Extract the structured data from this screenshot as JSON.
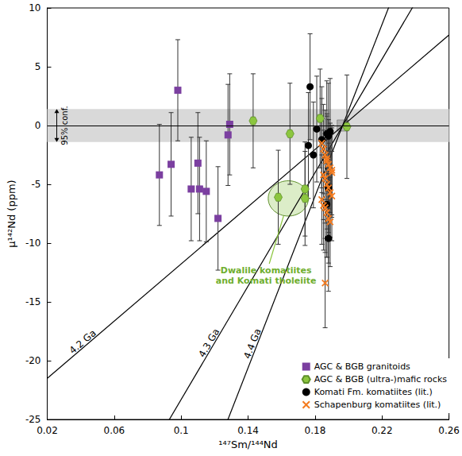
{
  "chart_data": {
    "type": "scatter",
    "xlabel": "¹⁴⁷Sm/¹⁴⁴Nd",
    "ylabel": "μ¹⁴²Nd (ppm)",
    "xlim": [
      0.02,
      0.26
    ],
    "xticks": [
      0.02,
      0.06,
      0.1,
      0.14,
      0.18,
      0.22,
      0.26
    ],
    "ylim": [
      -25,
      10
    ],
    "yticks": [
      -25,
      -20,
      -15,
      -10,
      -5,
      0,
      5,
      10
    ],
    "grid": false,
    "legend": "lower right",
    "series": [
      {
        "name": "AGC & BGB granitoids",
        "color": "#7b3fa0",
        "marker": "square",
        "x": [
          0.087,
          0.094,
          0.098,
          0.106,
          0.11,
          0.111,
          0.115,
          0.122,
          0.128,
          0.129
        ],
        "values": [
          -4.2,
          -3.3,
          3,
          -5.4,
          -3.2,
          -5.4,
          -5.6,
          -7.9,
          -0.8,
          0.1
        ],
        "errors": [
          4.3,
          4.4,
          4.3,
          4.4,
          4.3,
          4.4,
          4.3,
          4.4,
          4.3,
          4.3
        ]
      },
      {
        "name": "AGC & BGB (ultra-)mafic rocks",
        "color": "#8cc63f",
        "marker": "hexagon",
        "x": [
          0.143,
          0.158,
          0.165,
          0.174,
          0.174,
          0.183,
          0.199
        ],
        "values": [
          0.4,
          -6.1,
          -0.7,
          -5.4,
          -6.2,
          0.6,
          -0.1
        ],
        "errors": [
          4.0,
          4.0,
          4.3,
          4.0,
          4.0,
          4.2,
          4.4
        ]
      },
      {
        "name": "Komati Fm. komatiites (lit.)",
        "color": "#000000",
        "marker": "circle",
        "x": [
          0.176,
          0.177,
          0.179,
          0.181,
          0.184,
          0.187,
          0.187,
          0.188,
          0.188,
          0.189,
          0.188
        ],
        "values": [
          -1.7,
          3.3,
          -2.5,
          -0.3,
          -1.2,
          -0.7,
          -6.7,
          -0.9,
          -5.3,
          -0.5,
          -9.6
        ],
        "errors": [
          4.5,
          4.5,
          4.5,
          4.5,
          4.5,
          4.5,
          4.5,
          4.5,
          4.5,
          4.5,
          4.5
        ]
      },
      {
        "name": "Schapenburg komatiites (lit.)",
        "color": "#f47c20",
        "marker": "x",
        "x": [
          0.184,
          0.185,
          0.186,
          0.187,
          0.188,
          0.189,
          0.19,
          0.185,
          0.186,
          0.187,
          0.188,
          0.189,
          0.19,
          0.184,
          0.185,
          0.186,
          0.187,
          0.188,
          0.189,
          0.19,
          0.187,
          0.186
        ],
        "values": [
          -1.5,
          -2.0,
          -2.5,
          -3.0,
          -3.3,
          -3.6,
          -4.0,
          -4.2,
          -4.5,
          -5.0,
          -5.3,
          -5.7,
          -6.0,
          -6.3,
          -6.8,
          -7.0,
          -7.4,
          -7.9,
          -8.2,
          -3.8,
          -2.8,
          -13.4
        ],
        "errors": [
          3.8,
          3.8,
          3.8,
          3.8,
          3.8,
          3.8,
          3.8,
          3.8,
          3.8,
          3.8,
          3.8,
          3.8,
          3.8,
          3.8,
          3.8,
          3.8,
          3.8,
          3.8,
          3.8,
          3.8,
          3.8,
          3.8
        ]
      }
    ],
    "isochrons": [
      {
        "label": "4.2 Ga",
        "x": [
          0.02,
          0.26
        ],
        "values": [
          -21.5,
          7.7
        ]
      },
      {
        "label": "4.3 Ga",
        "x": [
          0.02,
          0.26
        ],
        "values": [
          -42.6,
          15.3
        ]
      },
      {
        "label": "4.4 Ga",
        "x": [
          0.02,
          0.26
        ],
        "values": [
          -64.4,
          23.2
        ]
      }
    ],
    "reference_y": 0,
    "band": {
      "label": "95% conf.",
      "values": [
        -1.4,
        1.4
      ],
      "color": "#d9d9d9"
    },
    "reference_point": {
      "x": 0.1965,
      "y": 0,
      "marker": "square",
      "color": "#a6a6a6"
    },
    "ellipse": {
      "label": "Dwalile komatiites\nand Komati tholeiite",
      "x": 0.164,
      "y": -6.2,
      "x_radius": 0.012,
      "y_radius": 1.5,
      "color": "#8cc63f"
    }
  }
}
